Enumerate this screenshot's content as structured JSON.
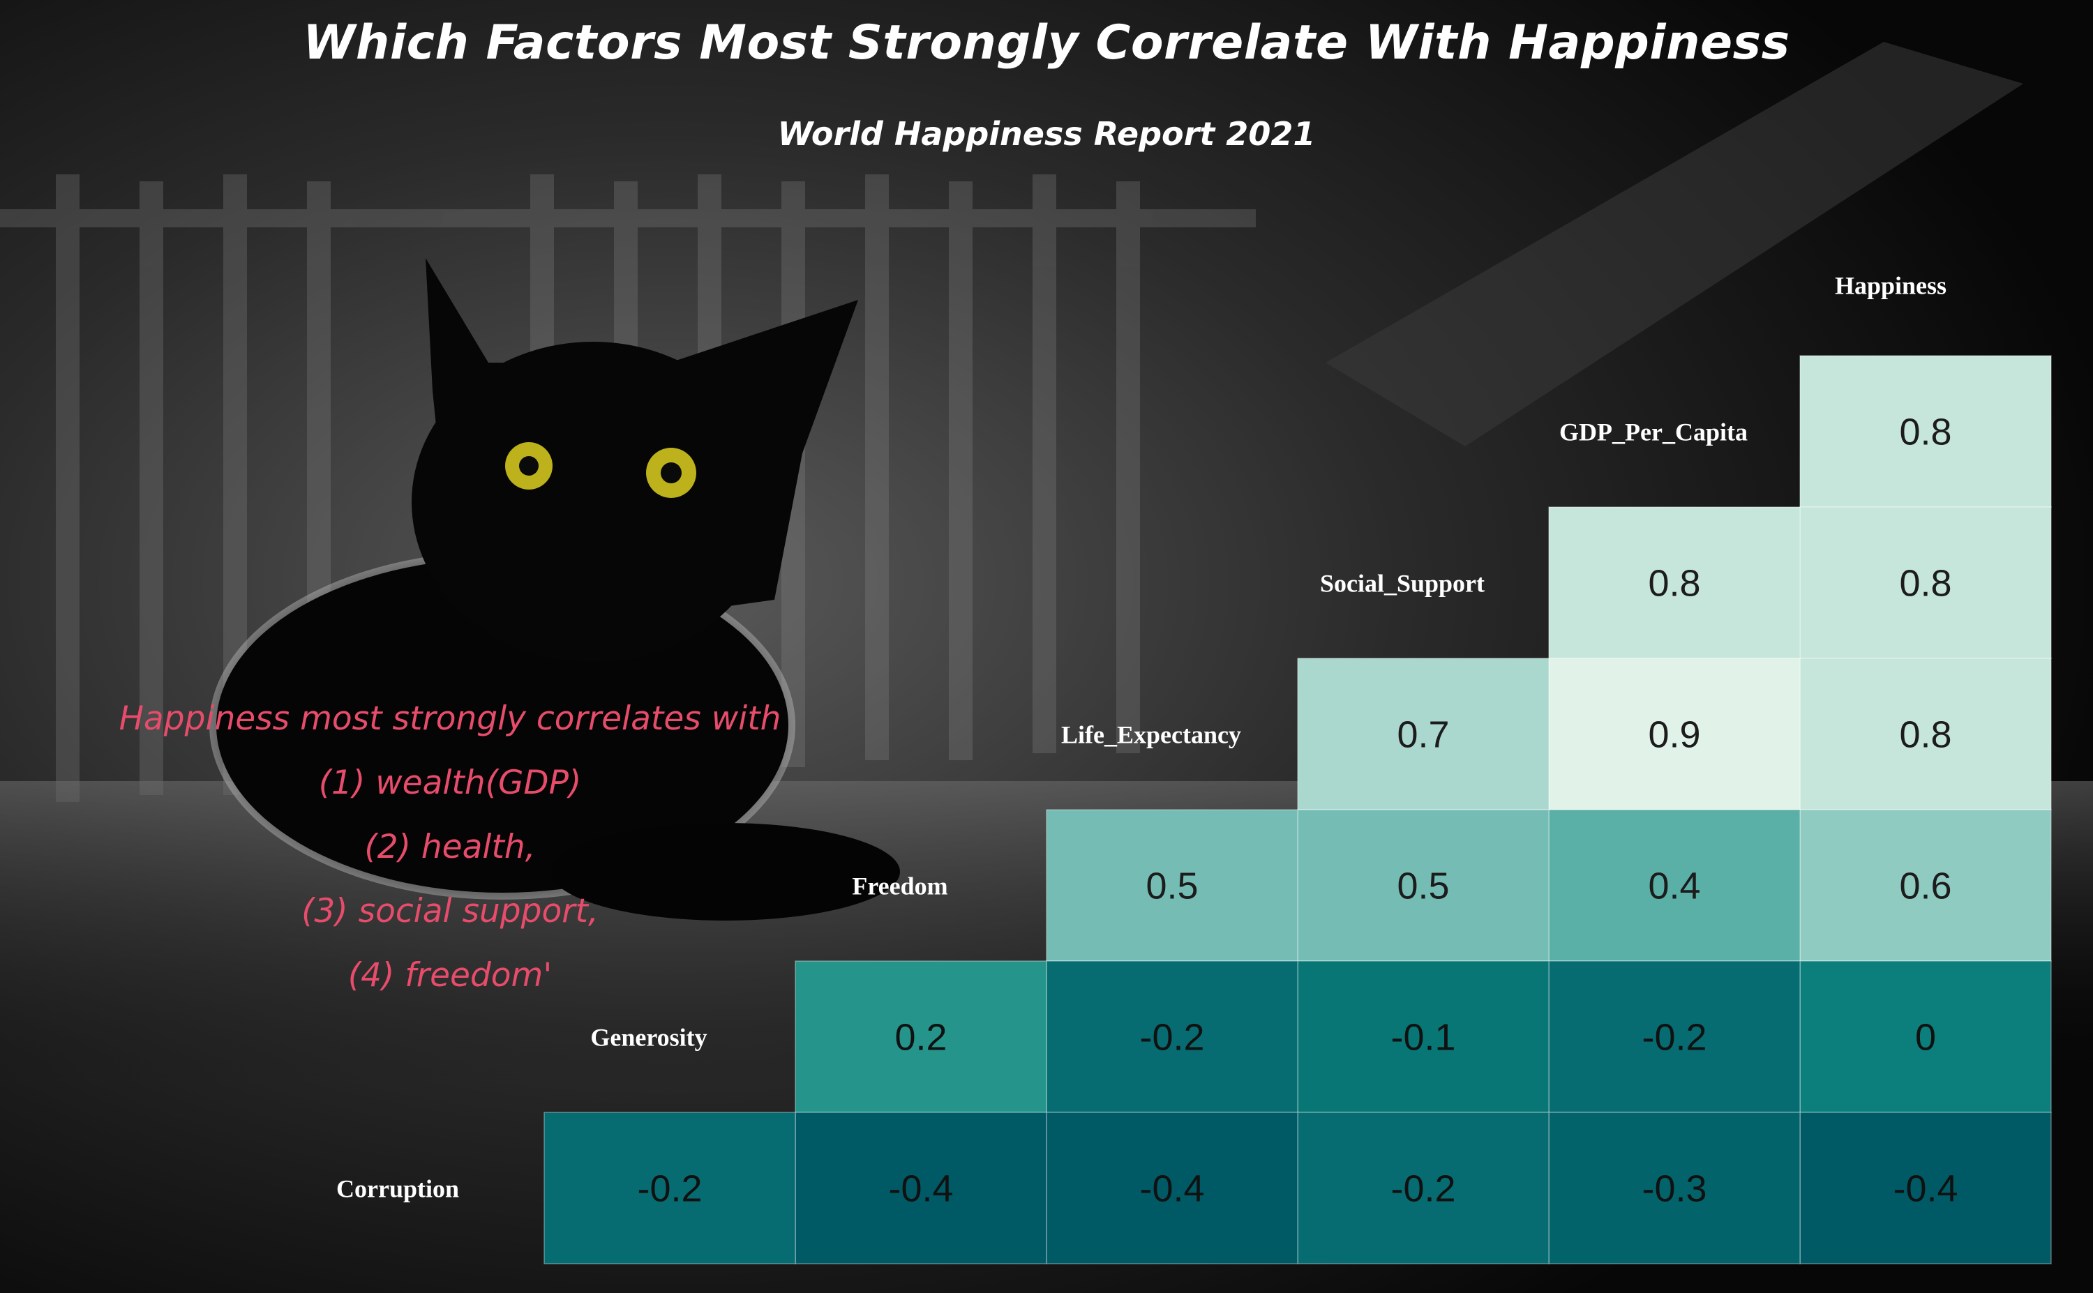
{
  "chart_data": {
    "type": "heatmap",
    "title": "Which Factors Most Strongly Correlate With Happiness",
    "subtitle": "World Happiness Report 2021",
    "columns": [
      "Happiness",
      "GDP_Per_Capita",
      "Social_Support",
      "Life_Expectancy",
      "Freedom",
      "Generosity"
    ],
    "rows": [
      "GDP_Per_Capita",
      "Social_Support",
      "Life_Expectancy",
      "Freedom",
      "Generosity",
      "Corruption"
    ],
    "values": [
      [
        0.8
      ],
      [
        0.8,
        0.8
      ],
      [
        0.8,
        0.9,
        0.7
      ],
      [
        0.6,
        0.4,
        0.5,
        0.5
      ],
      [
        0,
        -0.2,
        -0.1,
        -0.2,
        0.2
      ],
      [
        -0.4,
        -0.3,
        -0.2,
        -0.4,
        -0.4,
        -0.2
      ]
    ],
    "value_range": [
      -0.4,
      0.9
    ],
    "color_scale": {
      "low": "#005a66",
      "mid": "#0f8a82",
      "high": "#e1f3e8"
    },
    "annotation": [
      "Happiness most strongly correlates with",
      "(1) wealth(GDP)",
      "(2) health,",
      "(3) social support,",
      "(4) freedom'"
    ]
  }
}
